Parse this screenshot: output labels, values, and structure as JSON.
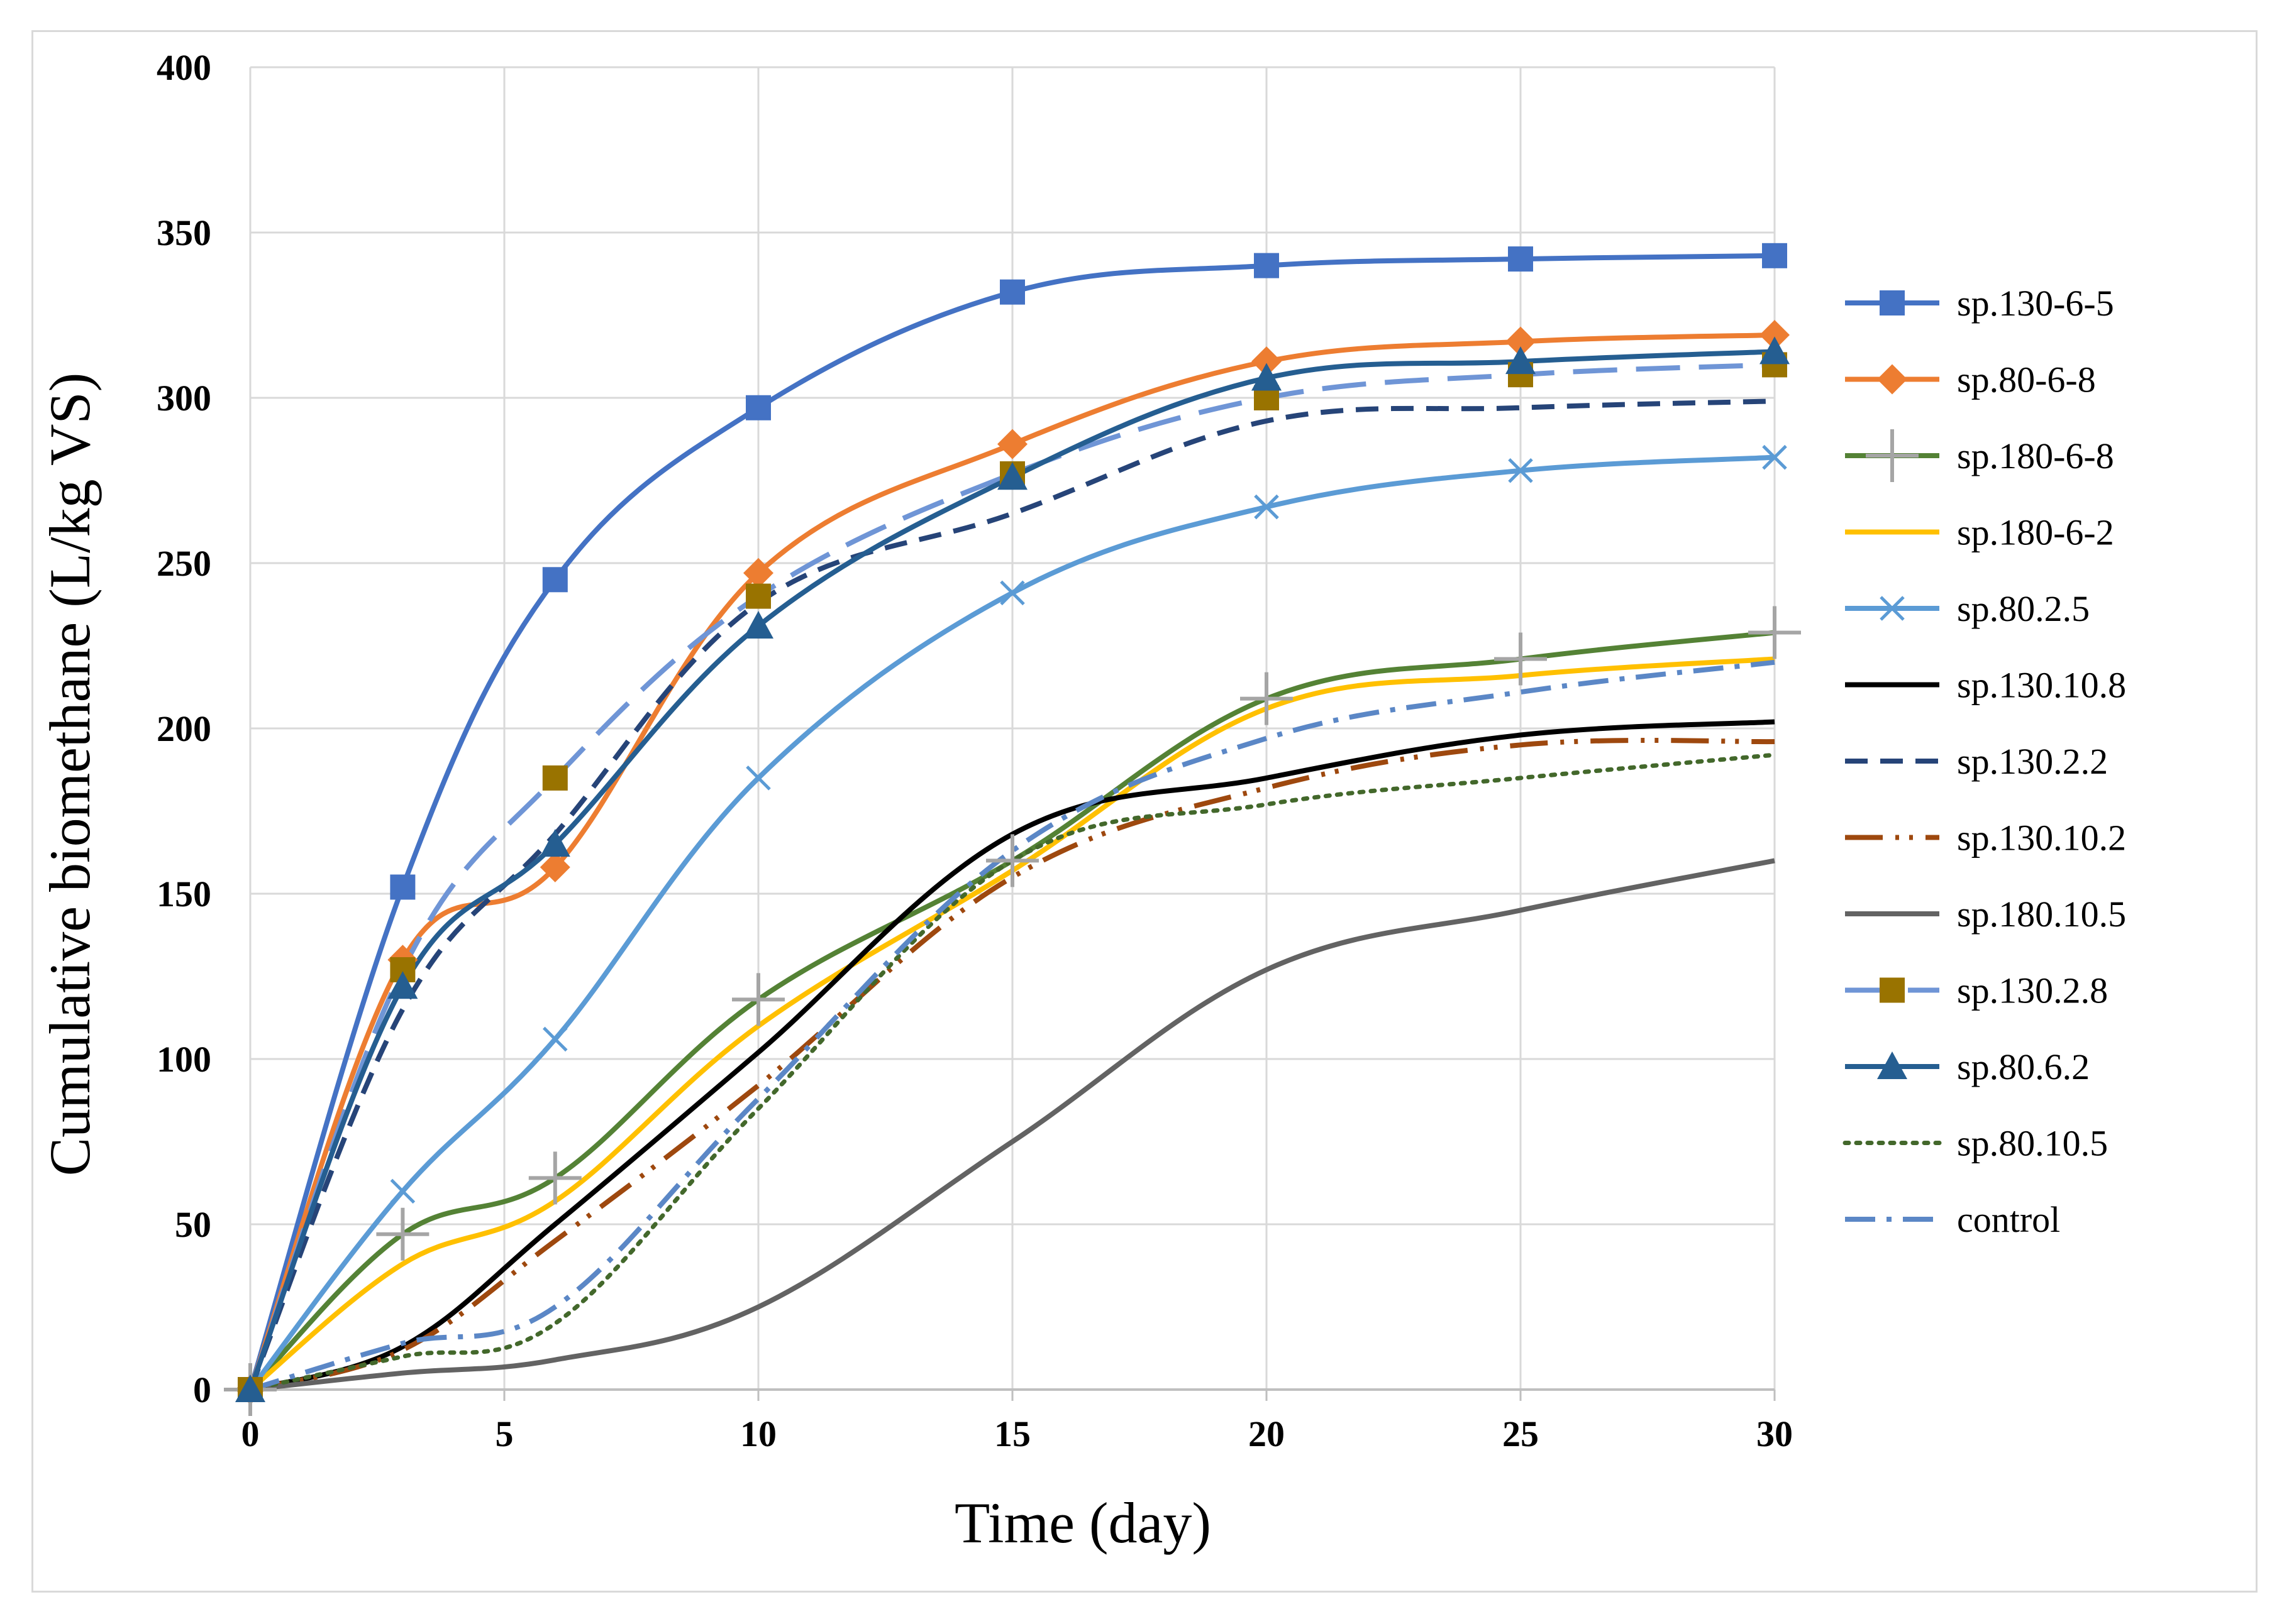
{
  "chart_data": {
    "type": "line",
    "title": "",
    "xlabel": "Time (day)",
    "ylabel": "Cumulative biomethane (L/kg VS)",
    "xlim": [
      0,
      30
    ],
    "ylim": [
      0,
      400
    ],
    "x_ticks": [
      "0",
      "5",
      "10",
      "15",
      "20",
      "25",
      "30"
    ],
    "y_ticks": [
      "0",
      "50",
      "100",
      "150",
      "200",
      "250",
      "300",
      "350",
      "400"
    ],
    "grid": true,
    "legend_position": "right",
    "x": [
      0,
      3,
      6,
      10,
      15,
      20,
      25,
      30
    ],
    "series": [
      {
        "name": "sp.130-6-5",
        "color": "#4472c4",
        "dash": "solid",
        "marker": "square",
        "marker_color": "#4472c4",
        "values": [
          0,
          152,
          245,
          297,
          332,
          340,
          342,
          343
        ]
      },
      {
        "name": "sp.80-6-8",
        "color": "#ed7d31",
        "dash": "solid",
        "marker": "diamond",
        "marker_color": "#ed7d31",
        "values": [
          0,
          130,
          158,
          247,
          286,
          311,
          317,
          319
        ]
      },
      {
        "name": "sp.180-6-8",
        "color": "#548235",
        "dash": "solid",
        "marker": "plus",
        "marker_color": "#a5a5a5",
        "values": [
          0,
          47,
          64,
          118,
          160,
          209,
          221,
          229
        ]
      },
      {
        "name": "sp.180-6-2",
        "color": "#ffc000",
        "dash": "solid",
        "marker": "none",
        "marker_color": "#ffc000",
        "values": [
          0,
          38,
          57,
          110,
          157,
          206,
          216,
          221
        ]
      },
      {
        "name": "sp.80.2.5",
        "color": "#5b9bd5",
        "dash": "solid",
        "marker": "x",
        "marker_color": "#5b9bd5",
        "values": [
          0,
          60,
          106,
          185,
          241,
          267,
          278,
          282
        ]
      },
      {
        "name": "sp.130.10.8",
        "color": "#000000",
        "dash": "solid",
        "marker": "none",
        "marker_color": "#000000",
        "values": [
          0,
          13,
          50,
          102,
          168,
          185,
          198,
          202
        ]
      },
      {
        "name": "sp.130.2.2",
        "color": "#264478",
        "dash": "dash",
        "marker": "none",
        "marker_color": "#264478",
        "values": [
          0,
          115,
          168,
          238,
          265,
          293,
          297,
          299
        ]
      },
      {
        "name": "sp.130.10.2",
        "color": "#9e480e",
        "dash": "longdashdotdot",
        "marker": "none",
        "marker_color": "#9e480e",
        "values": [
          0,
          12,
          45,
          92,
          155,
          182,
          195,
          196
        ]
      },
      {
        "name": "sp.180.10.5",
        "color": "#636363",
        "dash": "solid",
        "marker": "none",
        "marker_color": "#636363",
        "values": [
          0,
          5,
          9,
          25,
          75,
          127,
          145,
          160
        ]
      },
      {
        "name": "sp.130.2.8",
        "color": "#6f95d6",
        "dash": "longdash",
        "marker": "square",
        "marker_color": "#997300",
        "values": [
          0,
          127,
          185,
          240,
          277,
          300,
          307,
          310
        ]
      },
      {
        "name": "sp.80.6.2",
        "color": "#255e91",
        "dash": "solid",
        "marker": "triangle",
        "marker_color": "#255e91",
        "values": [
          0,
          122,
          165,
          231,
          276,
          306,
          311,
          314
        ]
      },
      {
        "name": "sp.80.10.5",
        "color": "#43682b",
        "dash": "dot",
        "marker": "none",
        "marker_color": "#43682b",
        "values": [
          0,
          10,
          20,
          85,
          160,
          177,
          185,
          192
        ]
      },
      {
        "name": "control",
        "color": "#5b87c6",
        "dash": "dashdot",
        "marker": "none",
        "marker_color": "#5b87c6",
        "values": [
          0,
          14,
          25,
          88,
          163,
          197,
          211,
          220
        ]
      }
    ]
  }
}
